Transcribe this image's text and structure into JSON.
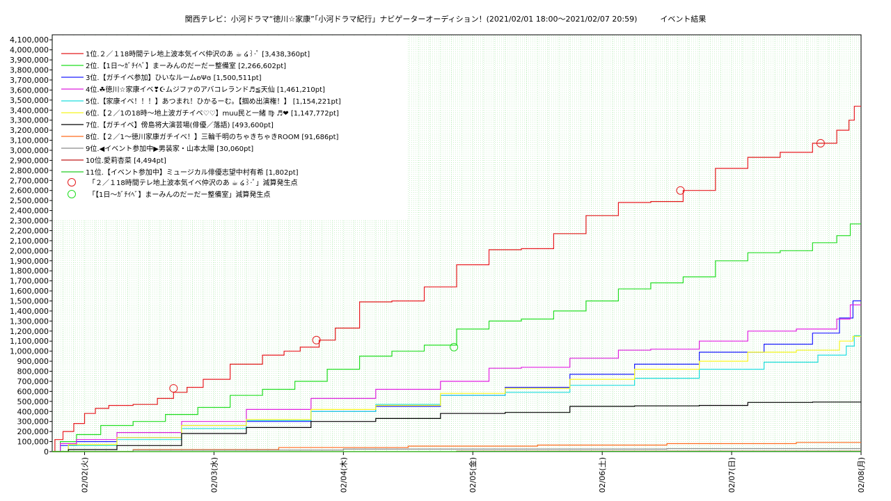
{
  "title": "関西テレビ：小河ドラマ“徳川☆家康”「小河ドラマ紀行」ナビゲーターオーディション！(2021/02/01 18:00〜2021/02/07 20:59)　　　イベント結果",
  "chart_data": {
    "type": "line",
    "title": "関西テレビ：小河ドラマ“徳川☆家康”「小河ドラマ紀行」ナビゲーターオーディション！(2021/02/01 18:00〜2021/02/07 20:59)　　　イベント結果",
    "xlim": [
      "2021-02-01 18:00",
      "2021-02-08 00:00"
    ],
    "ylim": [
      0,
      4150000
    ],
    "yticks": [
      "0",
      "100,000",
      "200,000",
      "300,000",
      "400,000",
      "500,000",
      "600,000",
      "700,000",
      "800,000",
      "900,000",
      "1,000,000",
      "1,100,000",
      "1,200,000",
      "1,300,000",
      "1,400,000",
      "1,500,000",
      "1,600,000",
      "1,700,000",
      "1,800,000",
      "1,900,000",
      "2,000,000",
      "2,100,000",
      "2,200,000",
      "2,300,000",
      "2,400,000",
      "2,500,000",
      "2,600,000",
      "2,700,000",
      "2,800,000",
      "2,900,000",
      "3,000,000",
      "3,100,000",
      "3,200,000",
      "3,300,000",
      "3,400,000",
      "3,500,000",
      "3,600,000",
      "3,700,000",
      "3,800,000",
      "3,900,000",
      "4,000,000",
      "4,100,000"
    ],
    "xticks": [
      "02/02(火)",
      "02/03(水)",
      "02/04(木)",
      "02/05(金)",
      "02/06(土)",
      "02/07(日)",
      "02/08(月)"
    ],
    "grid": true,
    "legend_position": "top-left",
    "series": [
      {
        "name": "1位.２／１18時間テレ地上波本気イベ仲沢のあ ☕ ໒꒱·ﾟ [3,438,360pt]",
        "color": "#e41a1c",
        "points": [
          [
            "2021-02-01 18:00",
            0
          ],
          [
            "2021-02-01 19:00",
            120000
          ],
          [
            "2021-02-01 21:00",
            200000
          ],
          [
            "2021-02-01 23:00",
            280000
          ],
          [
            "2021-02-02 01:00",
            380000
          ],
          [
            "2021-02-02 03:00",
            430000
          ],
          [
            "2021-02-02 06:00",
            460000
          ],
          [
            "2021-02-02 12:00",
            470000
          ],
          [
            "2021-02-02 15:00",
            530000
          ],
          [
            "2021-02-02 18:00",
            590000
          ],
          [
            "2021-02-02 20:00",
            640000
          ],
          [
            "2021-02-03 00:00",
            720000
          ],
          [
            "2021-02-03 06:00",
            870000
          ],
          [
            "2021-02-03 12:00",
            960000
          ],
          [
            "2021-02-03 14:00",
            1000000
          ],
          [
            "2021-02-03 18:00",
            1040000
          ],
          [
            "2021-02-03 21:00",
            1110000
          ],
          [
            "2021-02-04 00:00",
            1230000
          ],
          [
            "2021-02-04 06:00",
            1490000
          ],
          [
            "2021-02-04 12:00",
            1500000
          ],
          [
            "2021-02-04 18:00",
            1640000
          ],
          [
            "2021-02-05 00:00",
            1860000
          ],
          [
            "2021-02-05 06:00",
            2010000
          ],
          [
            "2021-02-05 12:00",
            2020000
          ],
          [
            "2021-02-05 18:00",
            2170000
          ],
          [
            "2021-02-06 00:00",
            2350000
          ],
          [
            "2021-02-06 06:00",
            2480000
          ],
          [
            "2021-02-06 12:00",
            2490000
          ],
          [
            "2021-02-06 18:00",
            2600000
          ],
          [
            "2021-02-07 00:00",
            2820000
          ],
          [
            "2021-02-07 06:00",
            2930000
          ],
          [
            "2021-02-07 12:00",
            2980000
          ],
          [
            "2021-02-07 18:00",
            3070000
          ],
          [
            "2021-02-07 21:00",
            3200000
          ],
          [
            "2021-02-07 22:30",
            3300000
          ],
          [
            "2021-02-07 23:00",
            3438360
          ],
          [
            "2021-02-08 00:00",
            3438360
          ]
        ]
      },
      {
        "name": "2位.【1日〜ｶﾞﾁｲﾍﾞ】まーみんのだーだー整備室 [2,266,602pt]",
        "color": "#1fdd1f",
        "points": [
          [
            "2021-02-01 18:00",
            0
          ],
          [
            "2021-02-01 21:00",
            100000
          ],
          [
            "2021-02-02 00:00",
            170000
          ],
          [
            "2021-02-02 06:00",
            260000
          ],
          [
            "2021-02-02 12:00",
            300000
          ],
          [
            "2021-02-02 18:00",
            370000
          ],
          [
            "2021-02-03 00:00",
            440000
          ],
          [
            "2021-02-03 06:00",
            560000
          ],
          [
            "2021-02-03 12:00",
            620000
          ],
          [
            "2021-02-03 18:00",
            700000
          ],
          [
            "2021-02-04 00:00",
            820000
          ],
          [
            "2021-02-04 06:00",
            950000
          ],
          [
            "2021-02-04 12:00",
            1000000
          ],
          [
            "2021-02-04 18:00",
            1060000
          ],
          [
            "2021-02-05 00:00",
            1220000
          ],
          [
            "2021-02-05 06:00",
            1300000
          ],
          [
            "2021-02-05 12:00",
            1320000
          ],
          [
            "2021-02-05 18:00",
            1400000
          ],
          [
            "2021-02-06 00:00",
            1500000
          ],
          [
            "2021-02-06 06:00",
            1620000
          ],
          [
            "2021-02-06 12:00",
            1680000
          ],
          [
            "2021-02-06 18:00",
            1740000
          ],
          [
            "2021-02-07 00:00",
            1900000
          ],
          [
            "2021-02-07 06:00",
            1980000
          ],
          [
            "2021-02-07 12:00",
            2000000
          ],
          [
            "2021-02-07 18:00",
            2080000
          ],
          [
            "2021-02-07 21:00",
            2150000
          ],
          [
            "2021-02-07 23:00",
            2266602
          ],
          [
            "2021-02-08 00:00",
            2266602
          ]
        ]
      },
      {
        "name": "3位.【ガチイベ参加】ひいなルームʚΨɞ [1,500,511pt]",
        "color": "#1c1cff",
        "points": [
          [
            "2021-02-01 18:00",
            0
          ],
          [
            "2021-02-01 21:00",
            60000
          ],
          [
            "2021-02-02 00:00",
            100000
          ],
          [
            "2021-02-02 12:00",
            140000
          ],
          [
            "2021-02-03 00:00",
            260000
          ],
          [
            "2021-02-03 12:00",
            300000
          ],
          [
            "2021-02-04 00:00",
            400000
          ],
          [
            "2021-02-04 12:00",
            450000
          ],
          [
            "2021-02-05 00:00",
            560000
          ],
          [
            "2021-02-05 12:00",
            640000
          ],
          [
            "2021-02-06 00:00",
            770000
          ],
          [
            "2021-02-06 12:00",
            870000
          ],
          [
            "2021-02-07 00:00",
            990000
          ],
          [
            "2021-02-07 12:00",
            1070000
          ],
          [
            "2021-02-07 18:00",
            1180000
          ],
          [
            "2021-02-07 22:00",
            1330000
          ],
          [
            "2021-02-07 23:00",
            1500511
          ],
          [
            "2021-02-08 00:00",
            1500511
          ]
        ]
      },
      {
        "name": "4位.☘徳川☆家康イベ❣☪ムジファのアバコレランド♬≦天仙 [1,461,210pt]",
        "color": "#dd1fdd",
        "points": [
          [
            "2021-02-01 18:00",
            0
          ],
          [
            "2021-02-01 21:00",
            80000
          ],
          [
            "2021-02-02 00:00",
            120000
          ],
          [
            "2021-02-02 12:00",
            190000
          ],
          [
            "2021-02-03 00:00",
            300000
          ],
          [
            "2021-02-03 12:00",
            420000
          ],
          [
            "2021-02-04 00:00",
            530000
          ],
          [
            "2021-02-04 12:00",
            620000
          ],
          [
            "2021-02-05 00:00",
            700000
          ],
          [
            "2021-02-05 06:00",
            830000
          ],
          [
            "2021-02-05 12:00",
            840000
          ],
          [
            "2021-02-06 00:00",
            930000
          ],
          [
            "2021-02-06 06:00",
            1010000
          ],
          [
            "2021-02-06 12:00",
            1020000
          ],
          [
            "2021-02-07 00:00",
            1100000
          ],
          [
            "2021-02-07 06:00",
            1200000
          ],
          [
            "2021-02-07 18:00",
            1220000
          ],
          [
            "2021-02-07 21:00",
            1320000
          ],
          [
            "2021-02-07 23:00",
            1461210
          ],
          [
            "2021-02-08 00:00",
            1461210
          ]
        ]
      },
      {
        "name": "5位.【家康イベ！！！】あつまれ！ひかるーむ。【掴め出演権！】 [1,154,221pt]",
        "color": "#1fdddd",
        "points": [
          [
            "2021-02-01 18:00",
            0
          ],
          [
            "2021-02-02 00:00",
            60000
          ],
          [
            "2021-02-02 12:00",
            120000
          ],
          [
            "2021-02-03 00:00",
            230000
          ],
          [
            "2021-02-03 12:00",
            310000
          ],
          [
            "2021-02-04 00:00",
            400000
          ],
          [
            "2021-02-04 12:00",
            470000
          ],
          [
            "2021-02-05 00:00",
            560000
          ],
          [
            "2021-02-05 12:00",
            590000
          ],
          [
            "2021-02-06 00:00",
            660000
          ],
          [
            "2021-02-06 12:00",
            730000
          ],
          [
            "2021-02-07 00:00",
            820000
          ],
          [
            "2021-02-07 12:00",
            890000
          ],
          [
            "2021-02-07 20:00",
            960000
          ],
          [
            "2021-02-07 22:30",
            1050000
          ],
          [
            "2021-02-07 23:00",
            1154221
          ],
          [
            "2021-02-08 00:00",
            1154221
          ]
        ]
      },
      {
        "name": "6位.【２／1の18時〜地上波ガチイベ♡♡】muu民と一緒 ♍ ♬❤ [1,147,772pt]",
        "color": "#f5f51f",
        "points": [
          [
            "2021-02-01 18:00",
            0
          ],
          [
            "2021-02-02 00:00",
            70000
          ],
          [
            "2021-02-02 12:00",
            140000
          ],
          [
            "2021-02-03 00:00",
            260000
          ],
          [
            "2021-02-03 12:00",
            320000
          ],
          [
            "2021-02-04 00:00",
            420000
          ],
          [
            "2021-02-04 12:00",
            460000
          ],
          [
            "2021-02-05 00:00",
            580000
          ],
          [
            "2021-02-05 12:00",
            630000
          ],
          [
            "2021-02-06 00:00",
            720000
          ],
          [
            "2021-02-06 12:00",
            820000
          ],
          [
            "2021-02-07 00:00",
            900000
          ],
          [
            "2021-02-07 06:00",
            990000
          ],
          [
            "2021-02-07 18:00",
            1010000
          ],
          [
            "2021-02-07 22:00",
            1100000
          ],
          [
            "2021-02-07 23:00",
            1147772
          ],
          [
            "2021-02-08 00:00",
            1147772
          ]
        ]
      },
      {
        "name": "7位.【ガチイベ】傍島将大演芸場(俳優／落語) [493,600pt]",
        "color": "#000000",
        "points": [
          [
            "2021-02-01 18:00",
            0
          ],
          [
            "2021-02-02 00:00",
            20000
          ],
          [
            "2021-02-02 12:00",
            60000
          ],
          [
            "2021-02-03 00:00",
            180000
          ],
          [
            "2021-02-03 12:00",
            240000
          ],
          [
            "2021-02-04 00:00",
            300000
          ],
          [
            "2021-02-04 12:00",
            330000
          ],
          [
            "2021-02-05 00:00",
            380000
          ],
          [
            "2021-02-05 12:00",
            390000
          ],
          [
            "2021-02-06 00:00",
            450000
          ],
          [
            "2021-02-06 12:00",
            455000
          ],
          [
            "2021-02-07 00:00",
            460000
          ],
          [
            "2021-02-07 06:00",
            490000
          ],
          [
            "2021-02-08 00:00",
            493600
          ]
        ]
      },
      {
        "name": "8位.【２／1〜徳川家康ガチイベ！】三輪千明のちゃきちゃきROOM [91,686pt]",
        "color": "#ff6a1c",
        "points": [
          [
            "2021-02-01 18:00",
            0
          ],
          [
            "2021-02-03 00:00",
            20000
          ],
          [
            "2021-02-04 00:00",
            40000
          ],
          [
            "2021-02-05 00:00",
            55000
          ],
          [
            "2021-02-06 00:00",
            65000
          ],
          [
            "2021-02-07 00:00",
            80000
          ],
          [
            "2021-02-08 00:00",
            91686
          ]
        ]
      },
      {
        "name": "9位.◀イベント参加中▶男装家・山本太陽 [30,060pt]",
        "color": "#8a8a8a",
        "points": [
          [
            "2021-02-01 18:00",
            0
          ],
          [
            "2021-02-03 00:00",
            15000
          ],
          [
            "2021-02-05 00:00",
            25000
          ],
          [
            "2021-02-08 00:00",
            30060
          ]
        ]
      },
      {
        "name": "10位.愛莉杏菜 [4,494pt]",
        "color": "#c11818",
        "points": [
          [
            "2021-02-01 18:00",
            0
          ],
          [
            "2021-02-08 00:00",
            4494
          ]
        ]
      },
      {
        "name": "11位.【イベント参加中】ミュージカル俳優志望中村有希 [1,802pt]",
        "color": "#22cc22",
        "points": [
          [
            "2021-02-01 18:00",
            0
          ],
          [
            "2021-02-08 00:00",
            1802
          ]
        ]
      }
    ],
    "markers": [
      {
        "name": "「２／１18時間テレ地上波本気イベ仲沢のあ ☕ ໒꒱·ﾟ」減算発生点",
        "color": "#e41a1c",
        "points": [
          [
            "2021-02-02 16:30",
            630000
          ],
          [
            "2021-02-03 19:00",
            1110000
          ],
          [
            "2021-02-06 14:30",
            2600000
          ],
          [
            "2021-02-07 16:30",
            3070000
          ]
        ]
      },
      {
        "name": "「【1日〜ｶﾞﾁｲﾍﾞ】まーみんのだーだー整備室」減算発生点",
        "color": "#1fdd1f",
        "points": [
          [
            "2021-02-04 20:30",
            1040000
          ]
        ]
      }
    ]
  }
}
